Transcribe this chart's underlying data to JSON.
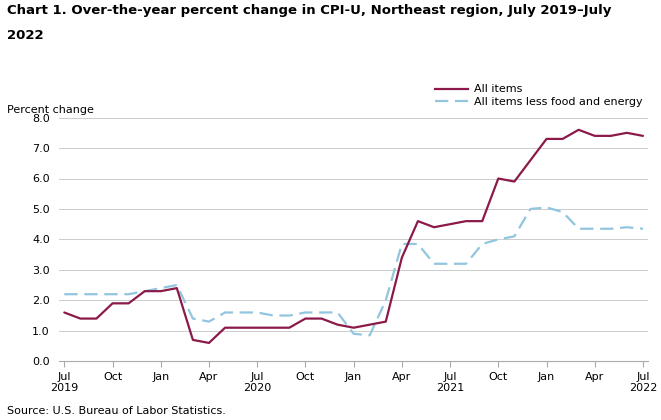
{
  "title_line1": "Chart 1. Over-the-year percent change in CPI-U, Northeast region, July 2019–July",
  "title_line2": "2022",
  "ylabel": "Percent change",
  "source": "Source: U.S. Bureau of Labor Statistics.",
  "ylim": [
    0.0,
    8.0
  ],
  "yticks": [
    0.0,
    1.0,
    2.0,
    3.0,
    4.0,
    5.0,
    6.0,
    7.0,
    8.0
  ],
  "all_items": {
    "label": "All items",
    "color": "#8b1a4a",
    "linewidth": 1.6,
    "values": [
      1.6,
      1.4,
      1.4,
      1.9,
      1.9,
      2.3,
      2.3,
      2.4,
      0.7,
      0.6,
      1.1,
      1.1,
      1.1,
      1.1,
      1.1,
      1.4,
      1.4,
      1.2,
      1.1,
      1.2,
      1.3,
      3.4,
      4.6,
      4.4,
      4.5,
      4.6,
      4.6,
      6.0,
      5.9,
      6.6,
      7.3,
      7.3,
      7.6,
      7.4,
      7.4,
      7.5,
      7.4
    ]
  },
  "core": {
    "label": "All items less food and energy",
    "color": "#92c5de",
    "linewidth": 1.6,
    "values": [
      2.2,
      2.2,
      2.2,
      2.2,
      2.2,
      2.3,
      2.4,
      2.5,
      1.4,
      1.3,
      1.6,
      1.6,
      1.6,
      1.5,
      1.5,
      1.6,
      1.6,
      1.6,
      0.9,
      0.85,
      2.0,
      3.85,
      3.85,
      3.2,
      3.2,
      3.2,
      3.85,
      4.0,
      4.1,
      5.0,
      5.05,
      4.9,
      4.35,
      4.35,
      4.35,
      4.4,
      4.35
    ]
  },
  "x_tick_labels": [
    "Jul\n2019",
    "Oct",
    "Jan",
    "Apr",
    "Jul\n2020",
    "Oct",
    "Jan",
    "Apr",
    "Jul\n2021",
    "Oct",
    "Jan",
    "Apr",
    "Jul\n2022"
  ],
  "x_tick_positions": [
    0,
    3,
    6,
    9,
    12,
    15,
    18,
    21,
    24,
    27,
    30,
    33,
    36
  ],
  "background_color": "#ffffff",
  "grid_color": "#cccccc"
}
